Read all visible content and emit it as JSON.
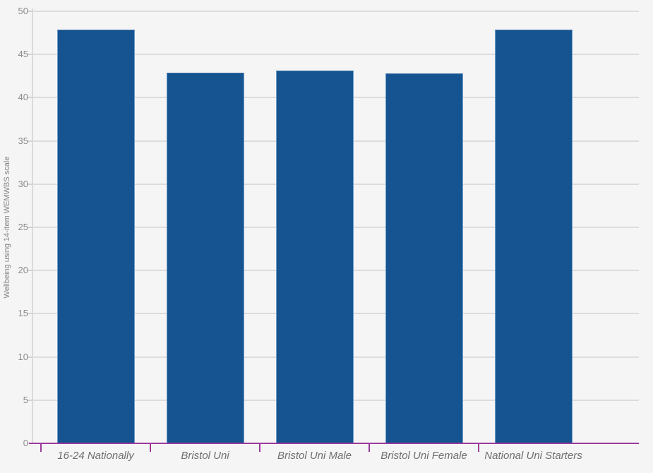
{
  "chart_data": {
    "type": "bar",
    "title": "",
    "categories": [
      "16-24 Nationally",
      "Bristol Uni",
      "Bristol Uni Male",
      "Bristol Uni Female",
      "National Uni Starters"
    ],
    "values": [
      47.9,
      42.9,
      43.1,
      42.8,
      47.9
    ],
    "xlabel": "",
    "ylabel": "Wellbeing using 14-item WEMWBS scale",
    "ylim": [
      0,
      50
    ],
    "yticks": [
      0,
      5,
      10,
      15,
      20,
      25,
      30,
      35,
      40,
      45,
      50
    ],
    "grid": true,
    "legend": false,
    "colors": {
      "background": "#f5f5f5",
      "bar_fill": "#155490",
      "bar_border": "#6d9dcb",
      "baseline": "#9b3a9d",
      "gridline": "#dcdcdc",
      "tick_label": "#8b8b8b",
      "category_label": "#6e6e6e",
      "y_title": "#848484"
    }
  }
}
